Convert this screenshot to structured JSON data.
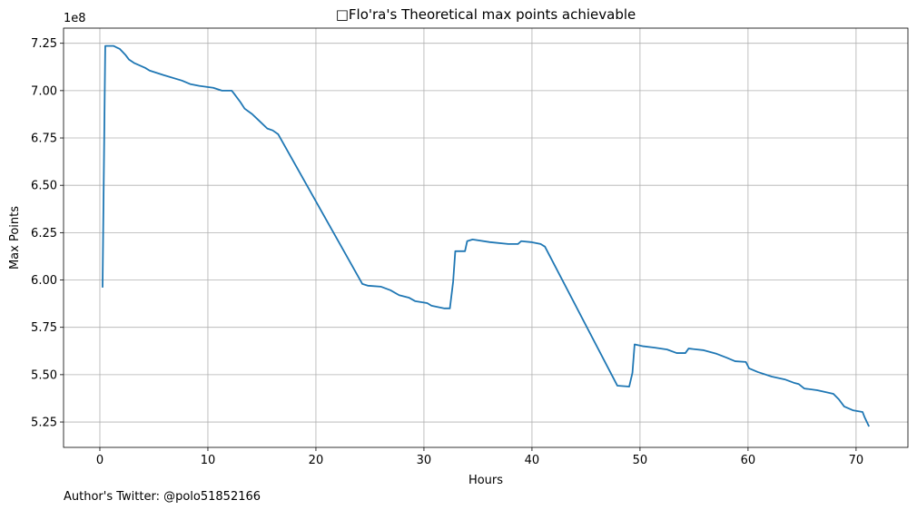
{
  "chart_data": {
    "type": "line",
    "title": "□Flo'ra's Theoretical max points achievable",
    "x_label": "Hours",
    "y_label": "Max Points",
    "y_offset_label": "1e8",
    "footer": "Author's Twitter: @polo51852166",
    "color": "#1f77b4",
    "grid": true,
    "xlim": [
      -3.36,
      74.8
    ],
    "ylim": [
      5.116,
      7.33
    ],
    "xticks": [
      0,
      10,
      20,
      30,
      40,
      50,
      60,
      70
    ],
    "yticks": [
      5.25,
      {
        "value": 5.5,
        "label": "5.50"
      },
      5.75,
      {
        "value": 6,
        "label": "6.00"
      },
      6.25,
      {
        "value": 6.5,
        "label": "6.50"
      },
      6.75,
      {
        "value": 7,
        "label": "7.00"
      },
      7.25
    ],
    "x": [
      0.25,
      0.5,
      1.26,
      1.85,
      2.35,
      2.7,
      3.2,
      4.2,
      4.6,
      5.9,
      7.6,
      8.4,
      9.2,
      10.5,
      11.3,
      12.2,
      12.4,
      13.0,
      13.4,
      14.1,
      14.8,
      15.5,
      16.0,
      16.5,
      24.3,
      24.8,
      26.0,
      26.9,
      27.7,
      28.6,
      29.2,
      30.3,
      30.7,
      31.9,
      32.4,
      32.7,
      32.9,
      33.8,
      34.0,
      34.5,
      36.1,
      37.8,
      38.7,
      39.0,
      39.9,
      40.8,
      41.2,
      47.9,
      49.0,
      49.3,
      49.5,
      50.3,
      51.3,
      52.5,
      53.4,
      54.2,
      54.5,
      55.9,
      57.1,
      58.0,
      58.8,
      59.8,
      60.1,
      60.9,
      62.2,
      63.4,
      64.3,
      64.7,
      65.2,
      66.4,
      67.2,
      67.9,
      68.4,
      68.9,
      69.7,
      70.6,
      70.8,
      71.2
    ],
    "values": [
      5.96,
      7.236,
      7.236,
      7.22,
      7.19,
      7.164,
      7.145,
      7.12,
      7.106,
      7.082,
      7.053,
      7.034,
      7.025,
      7.015,
      7.0,
      7.0,
      6.986,
      6.94,
      6.905,
      6.876,
      6.838,
      6.8,
      6.79,
      6.77,
      5.979,
      5.97,
      5.965,
      5.946,
      5.92,
      5.907,
      5.888,
      5.878,
      5.864,
      5.85,
      5.85,
      5.99,
      6.152,
      6.152,
      6.205,
      6.214,
      6.2,
      6.19,
      6.19,
      6.205,
      6.2,
      6.19,
      6.176,
      5.442,
      5.437,
      5.51,
      5.66,
      5.65,
      5.643,
      5.633,
      5.614,
      5.614,
      5.638,
      5.629,
      5.61,
      5.59,
      5.571,
      5.567,
      5.533,
      5.514,
      5.49,
      5.475,
      5.456,
      5.45,
      5.427,
      5.418,
      5.408,
      5.399,
      5.37,
      5.332,
      5.312,
      5.303,
      5.274,
      5.226
    ]
  }
}
